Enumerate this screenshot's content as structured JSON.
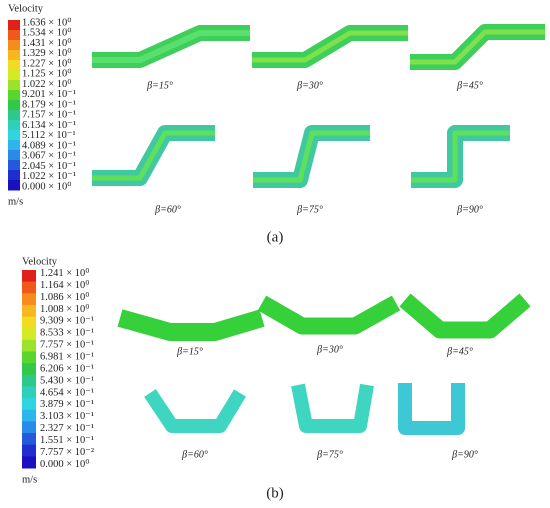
{
  "panels": [
    {
      "legend": {
        "title": "Velocity",
        "unit": "m/s",
        "labels": [
          "1.636 × 10⁰",
          "1.534 × 10⁰",
          "1.431 × 10⁰",
          "1.329 × 10⁰",
          "1.227 × 10⁰",
          "1.125 × 10⁰",
          "1.022 × 10⁰",
          "9.201 × 10⁻¹",
          "8.179 × 10⁻¹",
          "7.157 × 10⁻¹",
          "6.134 × 10⁻¹",
          "5.112 × 10⁻¹",
          "4.089 × 10⁻¹",
          "3.067 × 10⁻¹",
          "2.045 × 10⁻¹",
          "1.022 × 10⁻¹",
          "0.000 × 10⁰"
        ]
      },
      "cases": [
        "β=15°",
        "β=30°",
        "β=45°",
        "β=60°",
        "β=75°",
        "β=90°"
      ],
      "caption": "(a)"
    },
    {
      "legend": {
        "title": "Velocity",
        "unit": "m/s",
        "labels": [
          "1.241 × 10⁰",
          "1.164 × 10⁰",
          "1.086 × 10⁰",
          "1.008 × 10⁰",
          "9.309 × 10⁻¹",
          "8.533 × 10⁻¹",
          "7.757 × 10⁻¹",
          "6.981 × 10⁻¹",
          "6.206 × 10⁻¹",
          "5.430 × 10⁻¹",
          "4.654 × 10⁻¹",
          "3.879 × 10⁻¹",
          "3.103 × 10⁻¹",
          "2.327 × 10⁻¹",
          "1.551 × 10⁻¹",
          "7.757 × 10⁻²",
          "0.000 × 10⁰"
        ]
      },
      "cases": [
        "β=15°",
        "β=30°",
        "β=45°",
        "β=60°",
        "β=75°",
        "β=90°"
      ],
      "caption": "(b)"
    }
  ]
}
